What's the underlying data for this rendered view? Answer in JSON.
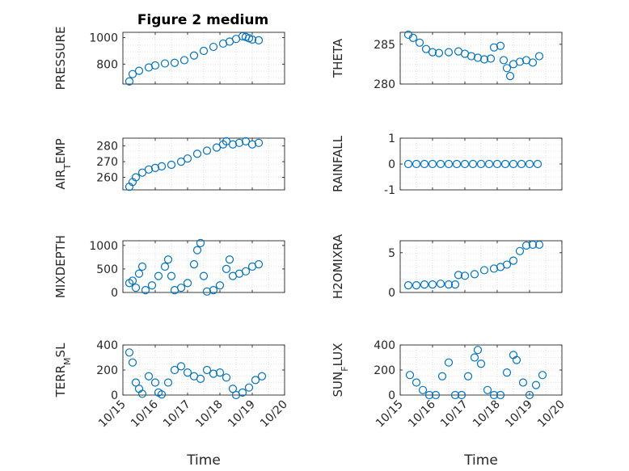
{
  "figure": {
    "title": "Figure 2 medium",
    "marker_color": "#0072BD"
  },
  "chart_data": [
    {
      "type": "scatter",
      "ylabel": "PRESSURE",
      "xlabel": "",
      "xlim": [
        0,
        5
      ],
      "ylim": [
        650,
        1040
      ],
      "yticks": [
        800,
        1000
      ],
      "yticklabels": [
        "800",
        "1000"
      ],
      "grid": true,
      "points": [
        [
          0.2,
          670
        ],
        [
          0.3,
          725
        ],
        [
          0.5,
          750
        ],
        [
          0.8,
          775
        ],
        [
          1.0,
          790
        ],
        [
          1.3,
          805
        ],
        [
          1.6,
          810
        ],
        [
          1.9,
          830
        ],
        [
          2.2,
          865
        ],
        [
          2.5,
          900
        ],
        [
          2.8,
          930
        ],
        [
          3.1,
          955
        ],
        [
          3.3,
          970
        ],
        [
          3.5,
          990
        ],
        [
          3.7,
          1010
        ],
        [
          3.8,
          1005
        ],
        [
          3.9,
          995
        ],
        [
          4.0,
          985
        ],
        [
          4.2,
          980
        ]
      ]
    },
    {
      "type": "scatter",
      "ylabel": "THETA",
      "xlabel": "",
      "xlim": [
        0,
        5
      ],
      "ylim": [
        280,
        286.5
      ],
      "yticks": [
        280,
        285
      ],
      "yticklabels": [
        "280",
        "285"
      ],
      "grid": true,
      "points": [
        [
          0.25,
          286.2
        ],
        [
          0.4,
          285.8
        ],
        [
          0.6,
          285.2
        ],
        [
          0.8,
          284.4
        ],
        [
          1.0,
          284.0
        ],
        [
          1.2,
          283.9
        ],
        [
          1.5,
          284.0
        ],
        [
          1.8,
          284.1
        ],
        [
          2.0,
          283.8
        ],
        [
          2.2,
          283.5
        ],
        [
          2.4,
          283.3
        ],
        [
          2.6,
          283.1
        ],
        [
          2.8,
          283.2
        ],
        [
          2.9,
          284.6
        ],
        [
          3.1,
          284.8
        ],
        [
          3.2,
          283.0
        ],
        [
          3.3,
          282.0
        ],
        [
          3.4,
          281.0
        ],
        [
          3.5,
          282.5
        ],
        [
          3.7,
          282.8
        ],
        [
          3.9,
          283.0
        ],
        [
          4.1,
          282.7
        ],
        [
          4.3,
          283.5
        ]
      ]
    },
    {
      "type": "scatter",
      "ylabel": "AIR_TEMP",
      "xlabel": "",
      "xlim": [
        0,
        5
      ],
      "ylim": [
        252,
        285
      ],
      "yticks": [
        260,
        270,
        280
      ],
      "yticklabels": [
        "260",
        "270",
        "280"
      ],
      "grid": true,
      "points": [
        [
          0.2,
          254
        ],
        [
          0.3,
          257
        ],
        [
          0.4,
          260
        ],
        [
          0.6,
          263
        ],
        [
          0.8,
          265
        ],
        [
          1.0,
          266
        ],
        [
          1.2,
          267
        ],
        [
          1.5,
          268
        ],
        [
          1.8,
          270
        ],
        [
          2.0,
          272
        ],
        [
          2.3,
          275
        ],
        [
          2.6,
          277
        ],
        [
          2.9,
          279
        ],
        [
          3.1,
          281
        ],
        [
          3.2,
          283
        ],
        [
          3.4,
          281
        ],
        [
          3.6,
          282
        ],
        [
          3.8,
          283
        ],
        [
          4.0,
          281
        ],
        [
          4.2,
          282
        ]
      ]
    },
    {
      "type": "scatter",
      "ylabel": "RAINFALL",
      "xlabel": "",
      "xlim": [
        0,
        5
      ],
      "ylim": [
        -1,
        1
      ],
      "yticks": [
        -1,
        0,
        1
      ],
      "yticklabels": [
        "-1",
        "0",
        "1"
      ],
      "grid": true,
      "points": [
        [
          0.25,
          0
        ],
        [
          0.5,
          0
        ],
        [
          0.75,
          0
        ],
        [
          1.0,
          0
        ],
        [
          1.25,
          0
        ],
        [
          1.5,
          0
        ],
        [
          1.75,
          0
        ],
        [
          2.0,
          0
        ],
        [
          2.25,
          0
        ],
        [
          2.5,
          0
        ],
        [
          2.75,
          0
        ],
        [
          3.0,
          0
        ],
        [
          3.25,
          0
        ],
        [
          3.5,
          0
        ],
        [
          3.75,
          0
        ],
        [
          4.0,
          0
        ],
        [
          4.25,
          0
        ]
      ]
    },
    {
      "type": "scatter",
      "ylabel": "MIXDEPTH",
      "xlabel": "",
      "xlim": [
        0,
        5
      ],
      "ylim": [
        0,
        1100
      ],
      "yticks": [
        0,
        500,
        1000
      ],
      "yticklabels": [
        "0",
        "500",
        "1000"
      ],
      "grid": true,
      "points": [
        [
          0.2,
          200
        ],
        [
          0.3,
          250
        ],
        [
          0.4,
          100
        ],
        [
          0.5,
          400
        ],
        [
          0.6,
          550
        ],
        [
          0.7,
          50
        ],
        [
          0.9,
          150
        ],
        [
          1.1,
          350
        ],
        [
          1.3,
          550
        ],
        [
          1.4,
          700
        ],
        [
          1.5,
          350
        ],
        [
          1.6,
          50
        ],
        [
          1.8,
          100
        ],
        [
          2.0,
          200
        ],
        [
          2.2,
          600
        ],
        [
          2.3,
          900
        ],
        [
          2.4,
          1050
        ],
        [
          2.5,
          350
        ],
        [
          2.6,
          20
        ],
        [
          2.8,
          50
        ],
        [
          3.0,
          150
        ],
        [
          3.2,
          500
        ],
        [
          3.3,
          700
        ],
        [
          3.4,
          350
        ],
        [
          3.6,
          400
        ],
        [
          3.8,
          450
        ],
        [
          4.0,
          550
        ],
        [
          4.2,
          600
        ]
      ]
    },
    {
      "type": "scatter",
      "ylabel": "H2OMIXRA",
      "xlabel": "",
      "xlim": [
        0,
        5
      ],
      "ylim": [
        0,
        6.5
      ],
      "yticks": [
        0,
        5
      ],
      "yticklabels": [
        "0",
        "5"
      ],
      "grid": true,
      "points": [
        [
          0.25,
          0.9
        ],
        [
          0.5,
          0.9
        ],
        [
          0.75,
          1.0
        ],
        [
          1.0,
          1.0
        ],
        [
          1.25,
          1.1
        ],
        [
          1.5,
          1.0
        ],
        [
          1.7,
          1.0
        ],
        [
          1.8,
          2.2
        ],
        [
          2.0,
          2.1
        ],
        [
          2.3,
          2.3
        ],
        [
          2.6,
          2.8
        ],
        [
          2.9,
          3.0
        ],
        [
          3.1,
          3.2
        ],
        [
          3.3,
          3.5
        ],
        [
          3.5,
          4.0
        ],
        [
          3.7,
          5.2
        ],
        [
          3.9,
          5.9
        ],
        [
          4.1,
          6.0
        ],
        [
          4.3,
          6.0
        ]
      ]
    },
    {
      "type": "scatter",
      "ylabel": "TERR_MSL",
      "xlabel": "Time",
      "xlim": [
        0,
        5
      ],
      "ylim": [
        0,
        400
      ],
      "yticks": [
        0,
        200,
        400
      ],
      "yticklabels": [
        "0",
        "200",
        "400"
      ],
      "xticks": [
        0,
        1,
        2,
        3,
        4,
        5
      ],
      "xticklabels": [
        "10/15",
        "10/16",
        "10/17",
        "10/18",
        "10/19",
        "10/20"
      ],
      "grid": true,
      "points": [
        [
          0.2,
          340
        ],
        [
          0.3,
          260
        ],
        [
          0.4,
          100
        ],
        [
          0.5,
          50
        ],
        [
          0.6,
          10
        ],
        [
          0.8,
          150
        ],
        [
          1.0,
          100
        ],
        [
          1.1,
          20
        ],
        [
          1.2,
          5
        ],
        [
          1.4,
          100
        ],
        [
          1.6,
          200
        ],
        [
          1.8,
          230
        ],
        [
          2.0,
          180
        ],
        [
          2.2,
          150
        ],
        [
          2.4,
          130
        ],
        [
          2.6,
          200
        ],
        [
          2.8,
          170
        ],
        [
          3.0,
          180
        ],
        [
          3.2,
          140
        ],
        [
          3.4,
          50
        ],
        [
          3.5,
          0
        ],
        [
          3.7,
          20
        ],
        [
          3.9,
          60
        ],
        [
          4.1,
          120
        ],
        [
          4.3,
          150
        ]
      ]
    },
    {
      "type": "scatter",
      "ylabel": "SUN_FLUX",
      "xlabel": "Time",
      "xlim": [
        0,
        5
      ],
      "ylim": [
        0,
        400
      ],
      "yticks": [
        0,
        200,
        400
      ],
      "yticklabels": [
        "0",
        "200",
        "400"
      ],
      "xticks": [
        0,
        1,
        2,
        3,
        4,
        5
      ],
      "xticklabels": [
        "10/15",
        "10/16",
        "10/17",
        "10/18",
        "10/19",
        "10/20"
      ],
      "grid": true,
      "points": [
        [
          0.3,
          160
        ],
        [
          0.5,
          100
        ],
        [
          0.7,
          40
        ],
        [
          0.9,
          0
        ],
        [
          1.1,
          0
        ],
        [
          1.3,
          150
        ],
        [
          1.5,
          260
        ],
        [
          1.7,
          0
        ],
        [
          1.9,
          0
        ],
        [
          2.1,
          150
        ],
        [
          2.3,
          300
        ],
        [
          2.4,
          360
        ],
        [
          2.5,
          250
        ],
        [
          2.7,
          40
        ],
        [
          2.9,
          0
        ],
        [
          3.1,
          0
        ],
        [
          3.3,
          180
        ],
        [
          3.5,
          320
        ],
        [
          3.6,
          280
        ],
        [
          3.8,
          100
        ],
        [
          4.0,
          0
        ],
        [
          4.2,
          80
        ],
        [
          4.4,
          160
        ]
      ]
    }
  ]
}
